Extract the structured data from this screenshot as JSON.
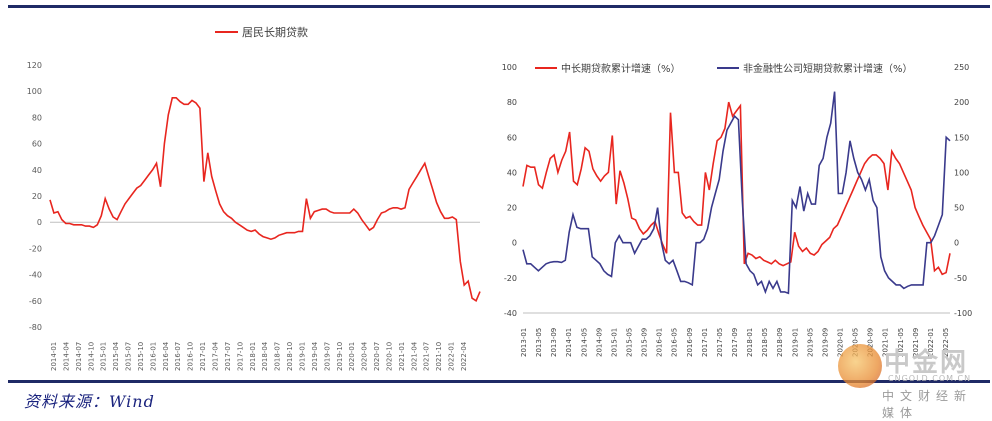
{
  "source_text": "资料来源：Wind",
  "watermark": {
    "title": "中金网",
    "url": "CNGOLD.COM.CN",
    "subtitle": "中文财经新媒体"
  },
  "chart_data": [
    {
      "type": "line",
      "title": "",
      "xlabel": "",
      "ylabel": "",
      "ylim": [
        -80,
        120
      ],
      "yticks": [
        -80,
        -60,
        -40,
        -20,
        0,
        20,
        40,
        60,
        80,
        100,
        120
      ],
      "grid": false,
      "legend_position": "top-center",
      "x_tick_labels": [
        "2014-01",
        "2014-04",
        "2014-07",
        "2014-10",
        "2015-01",
        "2015-04",
        "2015-07",
        "2015-10",
        "2016-01",
        "2016-04",
        "2016-07",
        "2016-10",
        "2017-01",
        "2017-04",
        "2017-07",
        "2017-10",
        "2018-01",
        "2018-04",
        "2018-07",
        "2018-10",
        "2019-01",
        "2019-04",
        "2019-07",
        "2019-10",
        "2020-01",
        "2020-04",
        "2020-07",
        "2020-10",
        "2021-01",
        "2021-04",
        "2021-07",
        "2021-10",
        "2022-01",
        "2022-04"
      ],
      "series": [
        {
          "name": "居民长期贷款",
          "color": "#e8261f",
          "values": [
            17,
            7,
            8,
            2,
            -1,
            -1,
            -2,
            -2,
            -2,
            -3,
            -3,
            -4,
            -2,
            5,
            18,
            10,
            4,
            2,
            8,
            14,
            18,
            22,
            26,
            28,
            32,
            36,
            40,
            45,
            27,
            60,
            82,
            95,
            95,
            92,
            90,
            90,
            93,
            91,
            87,
            31,
            53,
            35,
            24,
            14,
            8,
            5,
            3,
            0,
            -2,
            -4,
            -6,
            -7,
            -6,
            -9,
            -11,
            -12,
            -13,
            -12,
            -10,
            -9,
            -8,
            -8,
            -8,
            -7,
            -7,
            18,
            3,
            8,
            9,
            10,
            10,
            8,
            7,
            7,
            7,
            7,
            7,
            10,
            7,
            2,
            -2,
            -6,
            -4,
            2,
            7,
            8,
            10,
            11,
            11,
            10,
            11,
            25,
            30,
            35,
            40,
            45,
            35,
            25,
            15,
            8,
            3,
            3,
            4,
            2,
            -30,
            -48,
            -45,
            -58,
            -60,
            -53
          ]
        }
      ]
    },
    {
      "type": "line",
      "title": "",
      "xlabel": "",
      "ylabel": "",
      "ylim_left": [
        -40,
        100
      ],
      "ylim_right": [
        -100,
        250
      ],
      "yticks_left": [
        -40,
        -20,
        0,
        20,
        40,
        60,
        80,
        100
      ],
      "yticks_right": [
        -100,
        -50,
        0,
        50,
        100,
        150,
        200,
        250
      ],
      "grid": false,
      "legend_position": "top",
      "x_tick_labels": [
        "2013-01",
        "2013-05",
        "2013-09",
        "2014-01",
        "2014-05",
        "2014-09",
        "2015-01",
        "2015-05",
        "2015-09",
        "2016-01",
        "2016-05",
        "2016-09",
        "2017-01",
        "2017-05",
        "2017-09",
        "2018-01",
        "2018-05",
        "2018-09",
        "2019-01",
        "2019-05",
        "2019-09",
        "2020-01",
        "2020-05",
        "2020-09",
        "2021-01",
        "2021-05",
        "2021-09",
        "2022-01",
        "2022-05"
      ],
      "series": [
        {
          "name": "中长期贷款累计增速（%）",
          "axis": "left",
          "color": "#e8261f",
          "values": [
            32,
            44,
            43,
            43,
            33,
            31,
            40,
            48,
            50,
            40,
            47,
            52,
            63,
            35,
            33,
            42,
            54,
            52,
            42,
            38,
            35,
            38,
            40,
            61,
            22,
            41,
            34,
            25,
            14,
            13,
            8,
            5,
            7,
            10,
            12,
            5,
            -1,
            -6,
            74,
            40,
            40,
            17,
            14,
            15,
            12,
            10,
            10,
            40,
            30,
            45,
            58,
            60,
            65,
            80,
            72,
            75,
            78,
            -12,
            -6,
            -7,
            -9,
            -8,
            -10,
            -11,
            -12,
            -10,
            -12,
            -13,
            -12,
            -11,
            6,
            -2,
            -5,
            -3,
            -6,
            -7,
            -5,
            -1,
            1,
            3,
            8,
            10,
            15,
            20,
            25,
            30,
            35,
            40,
            45,
            48,
            50,
            50,
            48,
            45,
            30,
            52,
            48,
            45,
            40,
            35,
            30,
            20,
            15,
            10,
            6,
            2,
            -16,
            -14,
            -18,
            -17,
            -6
          ]
        },
        {
          "name": "非金融性公司短期贷款累计增速（%）",
          "axis": "right",
          "color": "#3a3a8c",
          "values": [
            -10,
            -30,
            -30,
            -35,
            -40,
            -35,
            -30,
            -28,
            -27,
            -27,
            -28,
            -25,
            15,
            40,
            22,
            20,
            20,
            20,
            -20,
            -25,
            -30,
            -40,
            -45,
            -48,
            0,
            10,
            0,
            0,
            0,
            -15,
            -5,
            5,
            5,
            10,
            20,
            50,
            0,
            -25,
            -30,
            -25,
            -40,
            -55,
            -55,
            -57,
            -60,
            0,
            0,
            5,
            20,
            50,
            70,
            90,
            130,
            160,
            170,
            180,
            175,
            60,
            -30,
            -40,
            -45,
            -60,
            -55,
            -70,
            -55,
            -65,
            -55,
            -70,
            -70,
            -72,
            60,
            50,
            80,
            45,
            70,
            55,
            55,
            110,
            120,
            150,
            170,
            215,
            70,
            70,
            100,
            145,
            120,
            100,
            90,
            75,
            90,
            60,
            50,
            -20,
            -40,
            -50,
            -55,
            -60,
            -60,
            -65,
            -62,
            -60,
            -60,
            -60,
            -60,
            0,
            0,
            10,
            25,
            40,
            150,
            145
          ]
        }
      ]
    }
  ]
}
